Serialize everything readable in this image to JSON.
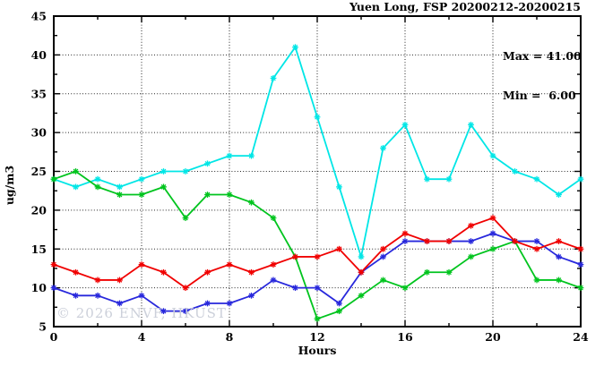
{
  "chart_data": {
    "type": "line",
    "title": "Yuen Long, FSP 20200212-20200215",
    "xlabel": "Hours",
    "ylabel": "ug/m3",
    "watermark": "© 2026 ENVF, HKUST",
    "annotations": {
      "max_label": "Max = 41.00",
      "min_label": "Min =  6.00"
    },
    "max": 41.0,
    "min": 6.0,
    "xlim": [
      0,
      24
    ],
    "ylim": [
      5,
      45
    ],
    "x_ticks": [
      0,
      4,
      8,
      12,
      16,
      20,
      24
    ],
    "x_minor_step": 2,
    "y_ticks": [
      5,
      10,
      15,
      20,
      25,
      30,
      35,
      40,
      45
    ],
    "y_minor_step": 2.5,
    "grid": true,
    "legend_position": "none",
    "marker": "asterisk",
    "x": [
      0,
      1,
      2,
      3,
      4,
      5,
      6,
      7,
      8,
      9,
      10,
      11,
      12,
      13,
      14,
      15,
      16,
      17,
      18,
      19,
      20,
      21,
      22,
      23,
      24
    ],
    "series": [
      {
        "name": "series-cyan",
        "color": "#00e6e6",
        "values": [
          24,
          23,
          24,
          23,
          24,
          25,
          25,
          26,
          27,
          27,
          37,
          41,
          32,
          23,
          14,
          28,
          31,
          24,
          24,
          31,
          27,
          25,
          24,
          22,
          24
        ]
      },
      {
        "name": "series-green",
        "color": "#00c41e",
        "values": [
          24,
          25,
          23,
          22,
          22,
          23,
          19,
          22,
          22,
          21,
          19,
          14,
          6,
          7,
          9,
          11,
          10,
          12,
          12,
          14,
          15,
          16,
          11,
          11,
          10
        ]
      },
      {
        "name": "series-blue",
        "color": "#2828dc",
        "values": [
          10,
          9,
          9,
          8,
          9,
          7,
          7,
          8,
          8,
          9,
          11,
          10,
          10,
          8,
          12,
          14,
          16,
          16,
          16,
          16,
          17,
          16,
          16,
          14,
          13
        ]
      },
      {
        "name": "series-red",
        "color": "#f00000",
        "values": [
          13,
          12,
          11,
          11,
          13,
          12,
          10,
          12,
          13,
          12,
          13,
          14,
          14,
          15,
          12,
          15,
          17,
          16,
          16,
          18,
          19,
          16,
          15,
          16,
          15
        ]
      }
    ]
  }
}
